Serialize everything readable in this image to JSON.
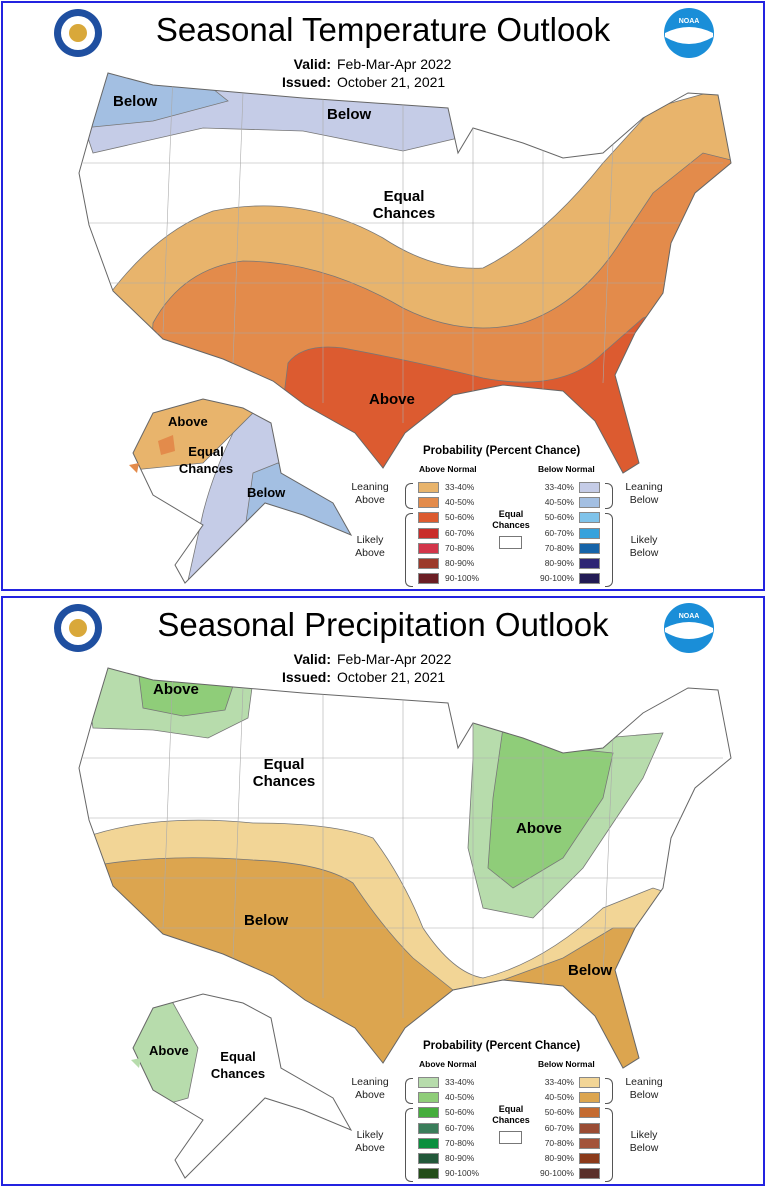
{
  "panels": [
    {
      "title": "Seasonal Temperature Outlook",
      "valid_label": "Valid:",
      "valid": "Feb-Mar-Apr 2022",
      "issued_label": "Issued:",
      "issued": "October 21, 2021",
      "regions": {
        "nw": "Below",
        "north": "Below",
        "center": "Equal Chances",
        "south": "Above",
        "ak_west": "Above",
        "ak_mid": "Equal Chances",
        "ak_se": "Below"
      },
      "legend": {
        "title": "Probability (Percent Chance)",
        "above_header": "Above Normal",
        "below_header": "Below Normal",
        "leaning_above": "Leaning Above",
        "likely_above": "Likely Above",
        "leaning_below": "Leaning Below",
        "likely_below": "Likely Below",
        "equal": "Equal Chances",
        "ranges": [
          "33-40%",
          "40-50%",
          "50-60%",
          "60-70%",
          "70-80%",
          "80-90%",
          "90-100%"
        ],
        "above_colors": [
          "#e8b46c",
          "#e38b4b",
          "#dc5b30",
          "#c92d2a",
          "#d2354a",
          "#9c3a2a",
          "#6b1e24"
        ],
        "below_colors": [
          "#c5cce7",
          "#a3bfe2",
          "#7fc3ea",
          "#36a2dc",
          "#1563a8",
          "#2e2574",
          "#221b55"
        ]
      }
    },
    {
      "title": "Seasonal Precipitation Outlook",
      "valid_label": "Valid:",
      "valid": "Feb-Mar-Apr 2022",
      "issued_label": "Issued:",
      "issued": "October 21, 2021",
      "regions": {
        "nw": "Above",
        "center": "Equal Chances",
        "southwest": "Below",
        "lakes": "Above",
        "southeast": "Below",
        "ak_west": "Above",
        "ak_mid": "Equal Chances"
      },
      "legend": {
        "title": "Probability (Percent Chance)",
        "above_header": "Above Normal",
        "below_header": "Below Normal",
        "leaning_above": "Leaning Above",
        "likely_above": "Likely Above",
        "leaning_below": "Leaning Below",
        "likely_below": "Likely Below",
        "equal": "Equal Chances",
        "ranges": [
          "33-40%",
          "40-50%",
          "50-60%",
          "60-70%",
          "70-80%",
          "80-90%",
          "90-100%"
        ],
        "above_colors": [
          "#b7dcac",
          "#8fcd79",
          "#45ad3c",
          "#3a7d5a",
          "#0b8f3e",
          "#22583a",
          "#234d19"
        ],
        "below_colors": [
          "#f2d596",
          "#dca54f",
          "#c46a30",
          "#9a4c34",
          "#a3533a",
          "#8b3a1a",
          "#5a2f2a"
        ]
      }
    }
  ]
}
